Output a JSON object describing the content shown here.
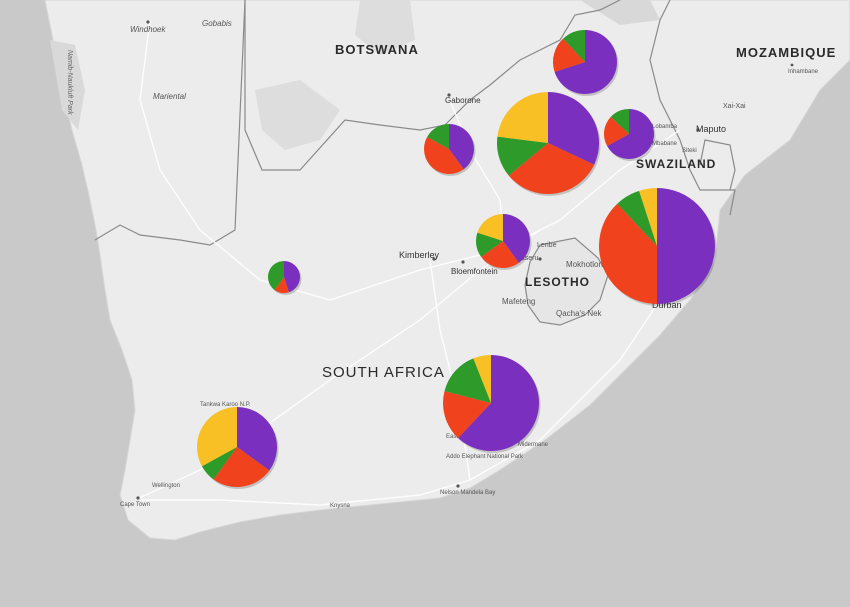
{
  "map": {
    "countries": [
      {
        "name": "BOTSWANA"
      },
      {
        "name": "MOZAMBIQUE"
      },
      {
        "name": "SWAZILAND"
      },
      {
        "name": "LESOTHO"
      },
      {
        "name": "SOUTH AFRICA"
      }
    ],
    "cities": [
      {
        "name": "Windhoek"
      },
      {
        "name": "Gobabis"
      },
      {
        "name": "Mariental"
      },
      {
        "name": "Gaborone"
      },
      {
        "name": "Maputo"
      },
      {
        "name": "Inhambane"
      },
      {
        "name": "Xai-Xai"
      },
      {
        "name": "Kimberley"
      },
      {
        "name": "Bloemfontein"
      },
      {
        "name": "Durban"
      },
      {
        "name": "Maseru"
      },
      {
        "name": "Mafeteng"
      },
      {
        "name": "Mokhotlong"
      },
      {
        "name": "Leribe"
      },
      {
        "name": "Qacha's Nek"
      },
      {
        "name": "Cape Town"
      },
      {
        "name": "Nelson Mandela Bay"
      },
      {
        "name": "Midermane"
      },
      {
        "name": "Wellington"
      },
      {
        "name": "Siteki"
      },
      {
        "name": "Mbabane"
      },
      {
        "name": "Lobamba"
      },
      {
        "name": "Knysna"
      },
      {
        "name": "East London"
      },
      {
        "name": "Tankwa Karoo N.P."
      },
      {
        "name": "Addo Elephant National Park"
      }
    ],
    "park_labels": [
      {
        "name": "Namib-Naukluft Park"
      }
    ],
    "colors": {
      "purple": "#7b2fbf",
      "red": "#f0421c",
      "green": "#2e9a2a",
      "yellow": "#f8c024"
    },
    "pies": [
      {
        "slices": [
          {
            "color": "purple",
            "value": 0.7
          },
          {
            "color": "red",
            "value": 0.18
          },
          {
            "color": "green",
            "value": 0.12
          },
          {
            "color": "yellow",
            "value": 0.0
          }
        ]
      },
      {
        "slices": [
          {
            "color": "purple",
            "value": 0.32
          },
          {
            "color": "red",
            "value": 0.32
          },
          {
            "color": "green",
            "value": 0.13
          },
          {
            "color": "yellow",
            "value": 0.23
          }
        ]
      },
      {
        "slices": [
          {
            "color": "purple",
            "value": 0.4
          },
          {
            "color": "red",
            "value": 0.43
          },
          {
            "color": "green",
            "value": 0.17
          },
          {
            "color": "yellow",
            "value": 0.0
          }
        ]
      },
      {
        "slices": [
          {
            "color": "purple",
            "value": 0.67
          },
          {
            "color": "red",
            "value": 0.2
          },
          {
            "color": "green",
            "value": 0.13
          },
          {
            "color": "yellow",
            "value": 0.0
          }
        ]
      },
      {
        "slices": [
          {
            "color": "purple",
            "value": 0.5
          },
          {
            "color": "red",
            "value": 0.38
          },
          {
            "color": "green",
            "value": 0.07
          },
          {
            "color": "yellow",
            "value": 0.05
          }
        ]
      },
      {
        "slices": [
          {
            "color": "purple",
            "value": 0.4
          },
          {
            "color": "red",
            "value": 0.25
          },
          {
            "color": "green",
            "value": 0.15
          },
          {
            "color": "yellow",
            "value": 0.2
          }
        ]
      },
      {
        "slices": [
          {
            "color": "purple",
            "value": 0.45
          },
          {
            "color": "red",
            "value": 0.15
          },
          {
            "color": "green",
            "value": 0.4
          },
          {
            "color": "yellow",
            "value": 0.0
          }
        ]
      },
      {
        "slices": [
          {
            "color": "purple",
            "value": 0.62
          },
          {
            "color": "red",
            "value": 0.17
          },
          {
            "color": "green",
            "value": 0.15
          },
          {
            "color": "yellow",
            "value": 0.06
          }
        ]
      },
      {
        "slices": [
          {
            "color": "purple",
            "value": 0.35
          },
          {
            "color": "red",
            "value": 0.25
          },
          {
            "color": "green",
            "value": 0.07
          },
          {
            "color": "yellow",
            "value": 0.33
          }
        ]
      }
    ]
  }
}
